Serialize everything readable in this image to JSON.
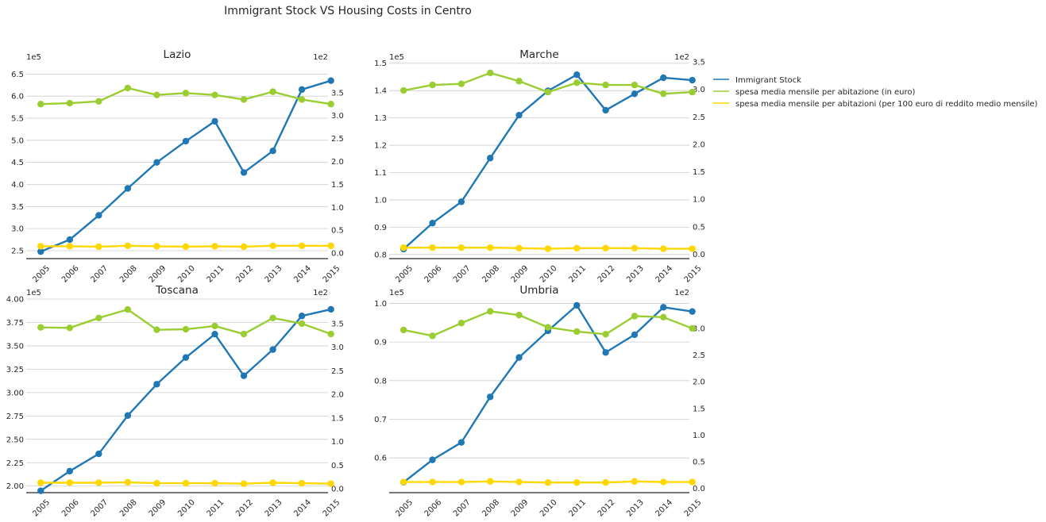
{
  "figure_title": "Immigrant Stock VS Housing Costs in Centro",
  "colors": {
    "immigrant_stock": "#1f77b4",
    "spesa_mensile": "#9acd32",
    "spesa_per_100": "#ffd700"
  },
  "legend": [
    {
      "label": "Immigrant Stock",
      "color": "#1f77b4"
    },
    {
      "label": "spesa media mensile per abitazione (in euro)",
      "color": "#9acd32"
    },
    {
      "label": "spesa media mensile per abitazioni (per 100 euro di reddito medio mensile)",
      "color": "#ffd700"
    }
  ],
  "chart_data": [
    {
      "type": "line",
      "title": "Lazio",
      "categories": [
        "2005",
        "2006",
        "2007",
        "2008",
        "2009",
        "2010",
        "2011",
        "2012",
        "2013",
        "2014",
        "2015"
      ],
      "left_axis": {
        "multiplier": "1e5",
        "range": [
          2.32,
          6.65
        ],
        "ticks": [
          2.5,
          3.0,
          3.5,
          4.0,
          4.5,
          5.0,
          5.5,
          6.0,
          6.5
        ],
        "tick_labels": [
          "2.5",
          "3.0",
          "3.5",
          "4.0",
          "4.5",
          "5.0",
          "5.5",
          "6.0",
          "6.5"
        ]
      },
      "right_axis": {
        "multiplier": "1e2",
        "range": [
          -0.12,
          4.05
        ],
        "ticks": [
          0.0,
          0.5,
          1.0,
          1.5,
          2.0,
          2.5,
          3.0,
          3.5
        ],
        "tick_labels": [
          "0.0",
          "0.5",
          "1.0",
          "1.5",
          "2.0",
          "2.5",
          "3.0",
          "3.5"
        ]
      },
      "series": [
        {
          "name": "Immigrant Stock",
          "axis": "left",
          "values": [
            2.48,
            2.75,
            3.3,
            3.91,
            4.5,
            4.98,
            5.43,
            4.27,
            4.76,
            6.15,
            6.35
          ]
        },
        {
          "name": "spesa media mensile per abitazione (in euro)",
          "axis": "right",
          "values": [
            3.25,
            3.27,
            3.31,
            3.6,
            3.45,
            3.49,
            3.45,
            3.35,
            3.52,
            3.35,
            3.25
          ]
        },
        {
          "name": "spesa media mensile per abitazioni (per 100 euro di reddito medio mensile)",
          "axis": "right",
          "values": [
            0.15,
            0.15,
            0.14,
            0.16,
            0.15,
            0.14,
            0.15,
            0.14,
            0.16,
            0.16,
            0.16
          ]
        }
      ]
    },
    {
      "type": "line",
      "title": "Marche",
      "categories": [
        "2005",
        "2006",
        "2007",
        "2008",
        "2009",
        "2010",
        "2011",
        "2012",
        "2013",
        "2014",
        "2015"
      ],
      "left_axis": {
        "multiplier": "1e5",
        "range": [
          0.785,
          1.505
        ],
        "ticks": [
          0.8,
          0.9,
          1.0,
          1.1,
          1.2,
          1.3,
          1.4,
          1.5
        ],
        "tick_labels": [
          "0.8",
          "0.9",
          "1.0",
          "1.1",
          "1.2",
          "1.3",
          "1.4",
          "1.5"
        ]
      },
      "right_axis": {
        "multiplier": "1e2",
        "range": [
          -0.08,
          3.5
        ],
        "ticks": [
          0.0,
          0.5,
          1.0,
          1.5,
          2.0,
          2.5,
          3.0,
          3.5
        ],
        "tick_labels": [
          "0.0",
          "0.5",
          "1.0",
          "1.5",
          "2.0",
          "2.5",
          "3.0",
          "3.5"
        ]
      },
      "series": [
        {
          "name": "Immigrant Stock",
          "axis": "left",
          "values": [
            0.82,
            0.915,
            0.993,
            1.153,
            1.31,
            1.399,
            1.458,
            1.328,
            1.388,
            1.447,
            1.438
          ]
        },
        {
          "name": "spesa media mensile per abitazione (in euro)",
          "axis": "right",
          "values": [
            2.98,
            3.08,
            3.1,
            3.3,
            3.15,
            2.95,
            3.12,
            3.08,
            3.08,
            2.92,
            2.95
          ]
        },
        {
          "name": "spesa media mensile per abitazioni (per 100 euro di reddito medio mensile)",
          "axis": "right",
          "values": [
            0.12,
            0.12,
            0.12,
            0.12,
            0.11,
            0.1,
            0.11,
            0.11,
            0.11,
            0.1,
            0.1
          ]
        }
      ]
    },
    {
      "type": "line",
      "title": "Toscana",
      "categories": [
        "2005",
        "2006",
        "2007",
        "2008",
        "2009",
        "2010",
        "2011",
        "2012",
        "2013",
        "2014",
        "2015"
      ],
      "left_axis": {
        "multiplier": "1e5",
        "range": [
          1.93,
          4.0
        ],
        "ticks": [
          2.0,
          2.25,
          2.5,
          2.75,
          3.0,
          3.25,
          3.5,
          3.75,
          4.0
        ],
        "tick_labels": [
          "2.00",
          "2.25",
          "2.50",
          "2.75",
          "3.00",
          "3.25",
          "3.50",
          "3.75",
          "4.00"
        ]
      },
      "right_axis": {
        "multiplier": "1e2",
        "range": [
          -0.08,
          4.02
        ],
        "ticks": [
          0.0,
          0.5,
          1.0,
          1.5,
          2.0,
          2.5,
          3.0,
          3.5
        ],
        "tick_labels": [
          "0.0",
          "0.5",
          "1.0",
          "1.5",
          "2.0",
          "2.5",
          "3.0",
          "3.5"
        ]
      },
      "series": [
        {
          "name": "Immigrant Stock",
          "axis": "left",
          "values": [
            1.95,
            2.16,
            2.345,
            2.755,
            3.09,
            3.375,
            3.625,
            3.18,
            3.46,
            3.82,
            3.89
          ]
        },
        {
          "name": "spesa media mensile per abitazione (in euro)",
          "axis": "right",
          "values": [
            3.42,
            3.41,
            3.62,
            3.8,
            3.37,
            3.38,
            3.45,
            3.28,
            3.62,
            3.5,
            3.28
          ]
        },
        {
          "name": "spesa media mensile per abitazioni (per 100 euro di reddito medio mensile)",
          "axis": "right",
          "values": [
            0.13,
            0.13,
            0.13,
            0.14,
            0.12,
            0.12,
            0.12,
            0.11,
            0.13,
            0.12,
            0.11
          ]
        }
      ]
    },
    {
      "type": "line",
      "title": "Umbria",
      "categories": [
        "2005",
        "2006",
        "2007",
        "2008",
        "2009",
        "2010",
        "2011",
        "2012",
        "2013",
        "2014",
        "2015"
      ],
      "left_axis": {
        "multiplier": "1e5",
        "range": [
          0.51,
          1.003
        ],
        "ticks": [
          0.6,
          0.7,
          0.8,
          0.9,
          1.0
        ],
        "tick_labels": [
          "0.6",
          "0.7",
          "0.8",
          "0.9",
          "1.0"
        ]
      },
      "right_axis": {
        "multiplier": "1e2",
        "range": [
          -0.08,
          3.49
        ],
        "ticks": [
          0.0,
          0.5,
          1.0,
          1.5,
          2.0,
          2.5,
          3.0
        ],
        "tick_labels": [
          "0.0",
          "0.5",
          "1.0",
          "1.5",
          "2.0",
          "2.5",
          "3.0"
        ]
      },
      "series": [
        {
          "name": "Immigrant Stock",
          "axis": "left",
          "values": [
            0.537,
            0.595,
            0.64,
            0.758,
            0.86,
            0.929,
            0.995,
            0.873,
            0.919,
            0.99,
            0.979
          ]
        },
        {
          "name": "spesa media mensile per abitazione (in euro)",
          "axis": "right",
          "values": [
            2.97,
            2.86,
            3.1,
            3.32,
            3.25,
            3.02,
            2.94,
            2.89,
            3.23,
            3.21,
            3.0
          ]
        },
        {
          "name": "spesa media mensile per abitazioni (per 100 euro di reddito medio mensile)",
          "axis": "right",
          "values": [
            0.12,
            0.12,
            0.12,
            0.13,
            0.12,
            0.11,
            0.11,
            0.11,
            0.13,
            0.12,
            0.12
          ]
        }
      ]
    }
  ]
}
